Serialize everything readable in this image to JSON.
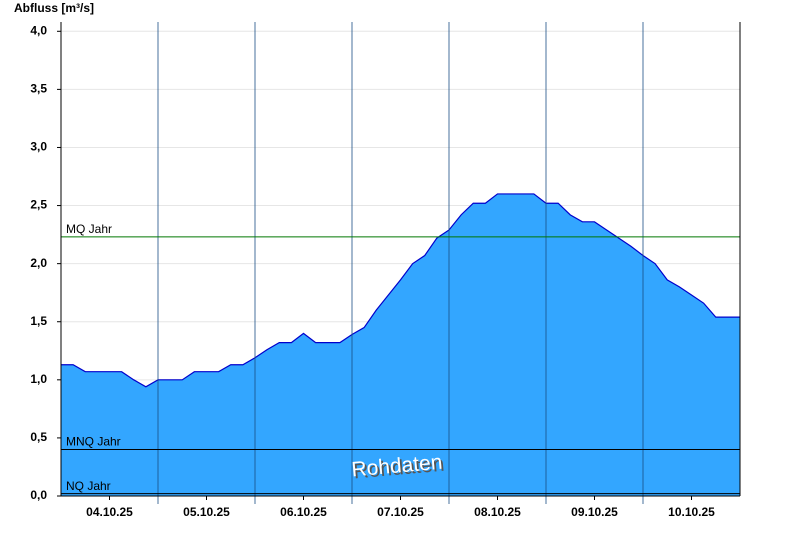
{
  "chart_data": {
    "type": "area",
    "title": "Abfluss [m³/s]",
    "categories": [
      null,
      null,
      null,
      null,
      "04.10.25",
      null,
      null,
      null,
      null,
      null,
      null,
      null,
      "05.10.25",
      null,
      null,
      null,
      null,
      null,
      null,
      null,
      "06.10.25",
      null,
      null,
      null,
      null,
      null,
      null,
      null,
      "07.10.25",
      null,
      null,
      null,
      null,
      null,
      null,
      null,
      "08.10.25",
      null,
      null,
      null,
      null,
      null,
      null,
      null,
      "09.10.25",
      null,
      null,
      null,
      null,
      null,
      null,
      null,
      "10.10.25",
      null,
      null,
      null,
      null
    ],
    "values": [
      1.13,
      1.13,
      1.07,
      1.07,
      1.07,
      1.07,
      1.0,
      0.94,
      1.0,
      1.0,
      1.0,
      1.07,
      1.07,
      1.07,
      1.13,
      1.13,
      1.19,
      1.26,
      1.32,
      1.32,
      1.4,
      1.32,
      1.32,
      1.32,
      1.39,
      1.45,
      1.6,
      1.73,
      1.86,
      2.0,
      2.07,
      2.22,
      2.29,
      2.42,
      2.52,
      2.52,
      2.6,
      2.6,
      2.6,
      2.6,
      2.52,
      2.52,
      2.42,
      2.36,
      2.36,
      2.29,
      2.22,
      2.15,
      2.07,
      2.0,
      1.86,
      1.8,
      1.73,
      1.66,
      1.54,
      1.54,
      1.54
    ],
    "color": "#33a6ff",
    "line_color": "#0000cc",
    "ylim": [
      0,
      4.08
    ],
    "yticks": [
      {
        "value": 0,
        "label": "0,0"
      },
      {
        "value": 0.5,
        "label": "0,5"
      },
      {
        "value": 1,
        "label": "1,0"
      },
      {
        "value": 1.5,
        "label": "1,5"
      },
      {
        "value": 2,
        "label": "2,0"
      },
      {
        "value": 2.5,
        "label": "2,5"
      },
      {
        "value": 3,
        "label": "3,0"
      },
      {
        "value": 3.5,
        "label": "3,5"
      },
      {
        "value": 4,
        "label": "4,0"
      }
    ],
    "grid": true,
    "reference_lines": [
      {
        "label": "MQ Jahr",
        "value": 2.23,
        "color": "#007700"
      },
      {
        "label": "MNQ Jahr",
        "value": 0.4,
        "color": "#000000"
      },
      {
        "label": "NQ Jahr",
        "value": 0.02,
        "color": "#000000"
      }
    ],
    "annotation": "Rohdaten"
  }
}
